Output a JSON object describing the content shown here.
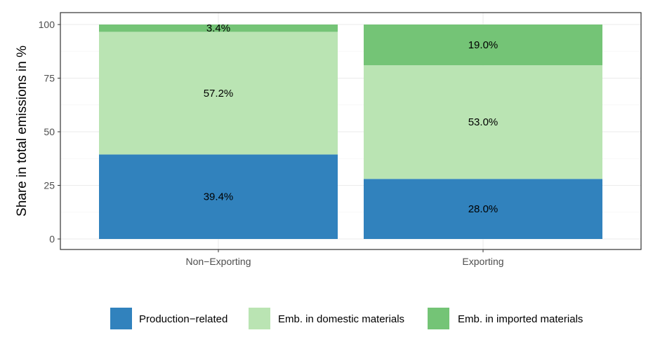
{
  "chart_data": {
    "type": "bar",
    "stacked": true,
    "categories": [
      "Non−Exporting",
      "Exporting"
    ],
    "series": [
      {
        "name": "Production−related",
        "color": "#3182bd",
        "values": [
          39.4,
          28.0
        ],
        "labels": [
          "39.4%",
          "28.0%"
        ]
      },
      {
        "name": "Emb. in domestic materials",
        "color": "#bae4b3",
        "values": [
          57.2,
          53.0
        ],
        "labels": [
          "57.2%",
          "53.0%"
        ]
      },
      {
        "name": "Emb. in imported materials",
        "color": "#74c476",
        "values": [
          3.4,
          19.0
        ],
        "labels": [
          "3.4%",
          "19.0%"
        ]
      }
    ],
    "ylabel": "Share in total emissions in %",
    "xlabel": "",
    "ylim": [
      0,
      100
    ],
    "yticks": [
      0,
      25,
      50,
      75,
      100
    ],
    "grid": true,
    "legend_position": "bottom"
  }
}
